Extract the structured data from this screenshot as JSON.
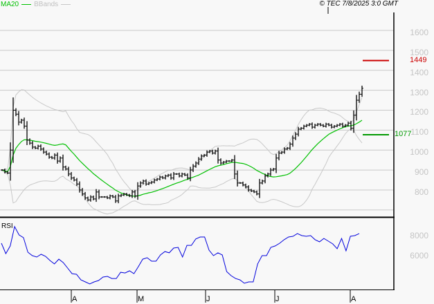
{
  "header": {
    "ma_label": "MA20",
    "bb_label": "BBands",
    "copyright": "© TEC 7/8/2025 3:0 GMT"
  },
  "price_axis": [
    "1600",
    "1500",
    "1400",
    "1300",
    "1200",
    "1100",
    "1000",
    "900",
    "800"
  ],
  "levels": {
    "resistance": {
      "label": "1449",
      "value": 1449,
      "color": "#cc0000"
    },
    "support": {
      "label": "1077",
      "value": 1077,
      "color": "#009900"
    }
  },
  "rsi_panel": {
    "label": "RSI",
    "axis": [
      "8000",
      "6000"
    ]
  },
  "months": [
    "A",
    "M",
    "J",
    "J",
    "A"
  ],
  "colors": {
    "ma": "#00c000",
    "bb": "#c8c8c8",
    "rsi": "#0000dd",
    "bars": "#000000"
  },
  "chart_data": {
    "type": "ohlc",
    "ylim": [
      700,
      1600
    ],
    "closes": [
      900,
      890,
      885,
      1000,
      1200,
      1180,
      1140,
      1150,
      1120,
      1050,
      1035,
      1015,
      1010,
      1020,
      1005,
      990,
      980,
      965,
      960,
      975,
      945,
      960,
      915,
      905,
      880,
      860,
      850,
      830,
      800,
      780,
      760,
      750,
      765,
      755,
      790,
      765,
      765,
      765,
      760,
      770,
      765,
      745,
      770,
      775,
      780,
      775,
      770,
      790,
      770,
      820,
      835,
      845,
      830,
      835,
      840,
      850,
      855,
      865,
      860,
      870,
      875,
      860,
      880,
      880,
      870,
      880,
      875,
      860,
      900,
      920,
      935,
      955,
      970,
      975,
      990,
      995,
      985,
      995,
      950,
      935,
      940,
      945,
      945,
      950,
      880,
      835,
      835,
      825,
      815,
      800,
      795,
      790,
      780,
      835,
      845,
      870,
      880,
      900,
      905,
      960,
      985,
      990,
      1005,
      1010,
      1030,
      1060,
      1080,
      1105,
      1110,
      1120,
      1125,
      1130,
      1115,
      1125,
      1130,
      1125,
      1120,
      1130,
      1125,
      1115,
      1120,
      1125,
      1130,
      1120,
      1125,
      1135,
      1110,
      1175,
      1250,
      1280,
      1310
    ],
    "rsi": [
      72.4,
      62,
      69.7,
      89,
      80.7,
      78,
      63.4,
      60,
      58.6,
      61.4,
      59.3,
      55.2,
      51.7,
      56.5,
      53,
      47.6,
      42,
      41.4,
      35.8,
      33.8,
      31.7,
      33.8,
      35.2,
      38.6,
      39.3,
      37.2,
      37.2,
      43.4,
      42.7,
      44.8,
      42,
      49,
      56.5,
      57.9,
      54.5,
      54.5,
      60.7,
      64.1,
      62.8,
      67.6,
      68.3,
      58.6,
      70.3,
      70.3,
      76.6,
      78.6,
      78.6,
      65.5,
      60,
      62.8,
      60.7,
      44.1,
      40,
      37.2,
      35.8,
      32.4,
      33.8,
      33.8,
      51.7,
      60,
      60,
      68.3,
      69.7,
      72.4,
      75.9,
      78.6,
      79.3,
      82,
      80,
      79.3,
      80,
      75.9,
      73.8,
      77.2,
      74.5,
      71.7,
      66.9,
      77.2,
      64.8,
      79.3,
      80,
      82
    ]
  }
}
